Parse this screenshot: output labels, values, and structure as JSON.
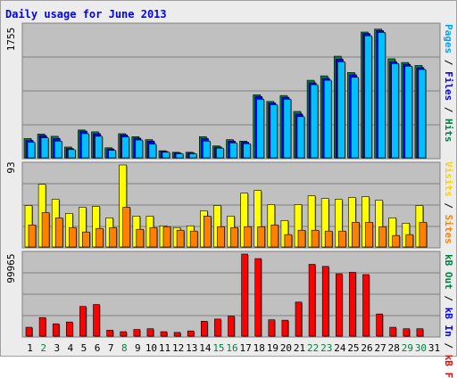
{
  "title": "Daily usage for June 2013",
  "ymax": {
    "top": "1755",
    "middle": "93",
    "bottom": "99965"
  },
  "right_labels": {
    "top": [
      {
        "text": "Pages",
        "color": "#00a0ff"
      },
      {
        "text": " / ",
        "color": "#000000"
      },
      {
        "text": "Files",
        "color": "#0000ff"
      },
      {
        "text": " / ",
        "color": "#000000"
      },
      {
        "text": "Hits",
        "color": "#008040"
      }
    ],
    "middle": [
      {
        "text": "Visits",
        "color": "#ffd000"
      },
      {
        "text": " / ",
        "color": "#000000"
      },
      {
        "text": "Sites",
        "color": "#ff8000"
      }
    ],
    "bottom": [
      {
        "text": "kB Out",
        "color": "#008040"
      },
      {
        "text": " / ",
        "color": "#000000"
      },
      {
        "text": "kB In",
        "color": "#0000ff"
      },
      {
        "text": " / ",
        "color": "#000000"
      },
      {
        "text": "kB F",
        "color": "#ff0000"
      }
    ]
  },
  "colors": {
    "frame_bg": "#ececec",
    "panel_bg": "#c0c0c0",
    "hits": "#008040",
    "files": "#0000ff",
    "pages": "#00c0ff",
    "visits": "#ffff00",
    "sites": "#ff8000",
    "kbf": "#ff0000",
    "weekday_label": "#000000",
    "weekend_label": "#008040"
  },
  "chart_data": [
    {
      "type": "bar",
      "title": "Daily usage for June 2013",
      "ylabel": "Pages / Files / Hits",
      "ylim": [
        0,
        1755
      ],
      "categories": [
        "1",
        "2",
        "3",
        "4",
        "5",
        "6",
        "7",
        "8",
        "9",
        "10",
        "11",
        "12",
        "13",
        "14",
        "15",
        "16",
        "17",
        "18",
        "19",
        "20",
        "21",
        "22",
        "23",
        "24",
        "25",
        "26",
        "27",
        "28",
        "29",
        "30",
        "31"
      ],
      "series": [
        {
          "name": "Hits",
          "values": [
            260,
            320,
            290,
            145,
            375,
            350,
            135,
            325,
            285,
            245,
            95,
            75,
            75,
            285,
            160,
            245,
            225,
            850,
            760,
            840,
            625,
            1045,
            1105,
            1370,
            1150,
            1695,
            1735,
            1335,
            1285,
            1245,
            0
          ]
        },
        {
          "name": "Files",
          "values": [
            235,
            300,
            260,
            125,
            360,
            325,
            120,
            310,
            265,
            225,
            85,
            65,
            65,
            260,
            145,
            225,
            210,
            825,
            740,
            815,
            590,
            1010,
            1070,
            1330,
            1120,
            1675,
            1715,
            1295,
            1260,
            1215,
            0
          ]
        },
        {
          "name": "Pages",
          "values": [
            210,
            270,
            225,
            110,
            325,
            290,
            100,
            280,
            240,
            185,
            75,
            55,
            55,
            225,
            130,
            200,
            190,
            790,
            715,
            790,
            555,
            985,
            1045,
            1295,
            1085,
            1645,
            1690,
            1270,
            1235,
            1190,
            0
          ]
        }
      ]
    },
    {
      "type": "bar",
      "ylabel": "Visits / Sites",
      "ylim": [
        0,
        93
      ],
      "categories": [
        "1",
        "2",
        "3",
        "4",
        "5",
        "6",
        "7",
        "8",
        "9",
        "10",
        "11",
        "12",
        "13",
        "14",
        "15",
        "16",
        "17",
        "18",
        "19",
        "20",
        "21",
        "22",
        "23",
        "24",
        "25",
        "26",
        "27",
        "28",
        "29",
        "30",
        "31"
      ],
      "series": [
        {
          "name": "Visits",
          "values": [
            47,
            71,
            54,
            38,
            45,
            46,
            33,
            93,
            35,
            35,
            24,
            22,
            24,
            41,
            47,
            35,
            61,
            64,
            48,
            30,
            48,
            58,
            55,
            54,
            56,
            57,
            53,
            33,
            27,
            47,
            0
          ]
        },
        {
          "name": "Sites",
          "values": [
            25,
            39,
            33,
            22,
            17,
            21,
            22,
            45,
            20,
            22,
            23,
            19,
            18,
            35,
            23,
            22,
            23,
            23,
            25,
            14,
            19,
            19,
            18,
            18,
            28,
            28,
            23,
            13,
            14,
            28,
            0
          ]
        }
      ]
    },
    {
      "type": "bar",
      "ylabel": "kB Out / kB In / kB F",
      "ylim": [
        0,
        99965
      ],
      "categories": [
        "1",
        "2",
        "3",
        "4",
        "5",
        "6",
        "7",
        "8",
        "9",
        "10",
        "11",
        "12",
        "13",
        "14",
        "15",
        "16",
        "17",
        "18",
        "19",
        "20",
        "21",
        "22",
        "23",
        "24",
        "25",
        "26",
        "27",
        "28",
        "29",
        "30",
        "31"
      ],
      "series": [
        {
          "name": "kB F",
          "values": [
            10800,
            22600,
            15000,
            17200,
            36200,
            38500,
            7200,
            5400,
            8100,
            9000,
            5400,
            4500,
            6300,
            18100,
            20800,
            24400,
            99965,
            94500,
            19900,
            19400,
            41500,
            87500,
            85000,
            76000,
            77800,
            75000,
            27000,
            10800,
            9000,
            9000,
            0
          ]
        }
      ]
    }
  ],
  "x_labels": [
    {
      "text": "1",
      "weekend": false
    },
    {
      "text": "2",
      "weekend": true
    },
    {
      "text": "3",
      "weekend": false
    },
    {
      "text": "4",
      "weekend": false
    },
    {
      "text": "5",
      "weekend": false
    },
    {
      "text": "6",
      "weekend": false
    },
    {
      "text": "7",
      "weekend": false
    },
    {
      "text": "8",
      "weekend": true
    },
    {
      "text": "9",
      "weekend": false
    },
    {
      "text": "10",
      "weekend": false
    },
    {
      "text": "11",
      "weekend": false
    },
    {
      "text": "12",
      "weekend": false
    },
    {
      "text": "13",
      "weekend": false
    },
    {
      "text": "14",
      "weekend": false
    },
    {
      "text": "15",
      "weekend": true
    },
    {
      "text": "16",
      "weekend": true
    },
    {
      "text": "17",
      "weekend": false
    },
    {
      "text": "18",
      "weekend": false
    },
    {
      "text": "19",
      "weekend": false
    },
    {
      "text": "20",
      "weekend": false
    },
    {
      "text": "21",
      "weekend": false
    },
    {
      "text": "22",
      "weekend": true
    },
    {
      "text": "23",
      "weekend": true
    },
    {
      "text": "24",
      "weekend": false
    },
    {
      "text": "25",
      "weekend": false
    },
    {
      "text": "26",
      "weekend": false
    },
    {
      "text": "27",
      "weekend": false
    },
    {
      "text": "28",
      "weekend": false
    },
    {
      "text": "29",
      "weekend": true
    },
    {
      "text": "30",
      "weekend": true
    },
    {
      "text": "31",
      "weekend": false
    }
  ]
}
